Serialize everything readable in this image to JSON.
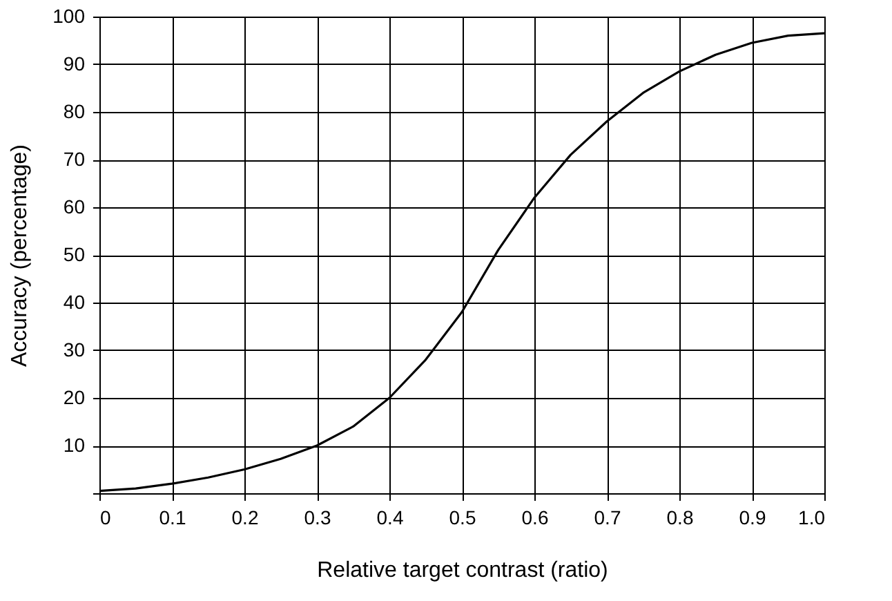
{
  "chart_data": {
    "type": "line",
    "xlabel": "Relative target contrast (ratio)",
    "ylabel": "Accuracy (percentage)",
    "x": [
      0,
      0.05,
      0.1,
      0.15,
      0.2,
      0.25,
      0.3,
      0.35,
      0.4,
      0.45,
      0.5,
      0.55,
      0.6,
      0.65,
      0.7,
      0.75,
      0.8,
      0.85,
      0.9,
      0.95,
      1.0
    ],
    "series": [
      {
        "color": "#000000",
        "values": [
          0.5,
          1,
          2,
          3.3,
          5,
          7.2,
          10,
          14,
          20,
          28,
          38,
          51,
          62,
          71,
          78,
          84,
          88.5,
          92,
          94.5,
          96,
          96.5
        ]
      }
    ],
    "xlim": [
      0,
      1.0
    ],
    "xticks": [
      0,
      0.1,
      0.2,
      0.3,
      0.4,
      0.5,
      0.6,
      0.7,
      0.8,
      0.9,
      {
        "value": 1.0,
        "label": "1.0"
      }
    ],
    "ylim": [
      0,
      100
    ],
    "yticks": [
      {
        "value": 0,
        "label": null
      },
      10,
      20,
      30,
      40,
      50,
      60,
      70,
      80,
      90,
      100
    ],
    "grid": true,
    "marker": "none",
    "line_style": "solid"
  }
}
